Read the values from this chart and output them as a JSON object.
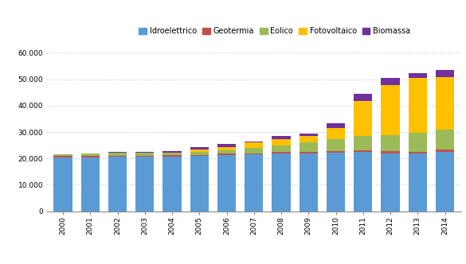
{
  "years": [
    "2000",
    "2001",
    "2002",
    "2003",
    "2004",
    "2005",
    "2006",
    "2007",
    "2008",
    "2009",
    "2010",
    "2011",
    "2012",
    "2013",
    "2014"
  ],
  "idroelettrico": [
    20500,
    20500,
    20700,
    20700,
    20800,
    21000,
    21300,
    21500,
    21800,
    22000,
    22200,
    22400,
    22000,
    21800,
    22500
  ],
  "geotermia": [
    400,
    400,
    400,
    400,
    400,
    400,
    500,
    500,
    600,
    600,
    700,
    700,
    800,
    800,
    900
  ],
  "eolico": [
    700,
    900,
    1000,
    1100,
    1100,
    1200,
    1400,
    2000,
    2500,
    3500,
    4500,
    5500,
    6000,
    7000,
    7500
  ],
  "fotovoltaico": [
    0,
    0,
    0,
    0,
    0,
    700,
    1000,
    2000,
    2500,
    2500,
    4000,
    13000,
    19000,
    21000,
    20000
  ],
  "biomassa": [
    0,
    200,
    300,
    300,
    400,
    1000,
    1200,
    500,
    1000,
    800,
    2000,
    3000,
    2700,
    1700,
    2500
  ],
  "colors": {
    "idroelettrico": "#5b9bd5",
    "geotermia": "#c0504d",
    "eolico": "#9bbb59",
    "fotovoltaico": "#ffc000",
    "biomassa": "#7030a0"
  },
  "ylim": [
    0,
    64000
  ],
  "yticks": [
    0,
    10000,
    20000,
    30000,
    40000,
    50000,
    60000
  ],
  "ytick_labels": [
    "0",
    "10.000",
    "20.000",
    "30.000",
    "40.000",
    "50.000",
    "60.000"
  ],
  "bg_color": "#ffffff"
}
